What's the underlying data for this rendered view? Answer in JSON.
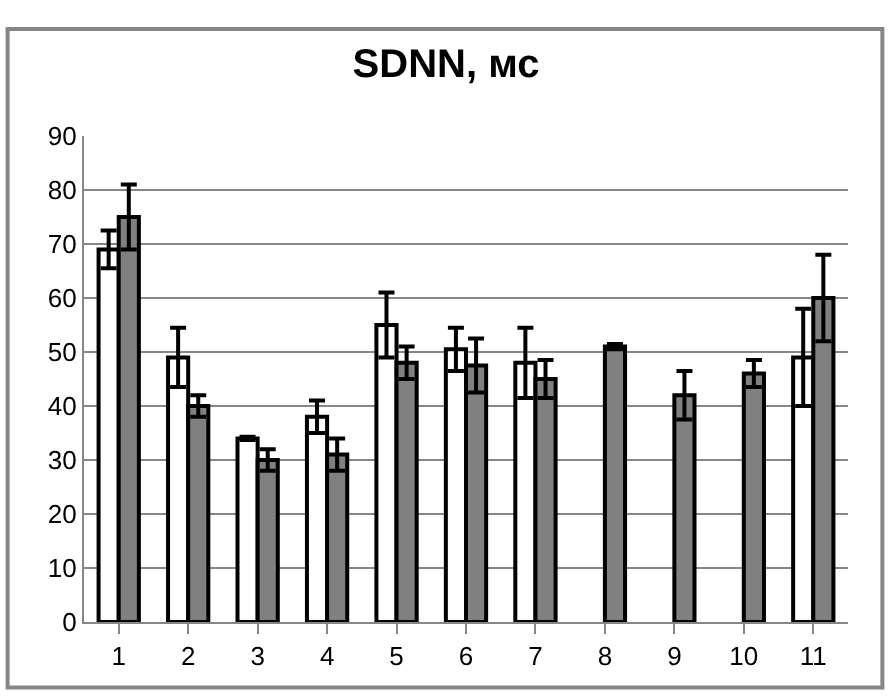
{
  "chart_data": {
    "type": "bar",
    "title": "SDNN, мс",
    "categories": [
      "1",
      "2",
      "3",
      "4",
      "5",
      "6",
      "7",
      "8",
      "9",
      "10",
      "11"
    ],
    "series": [
      {
        "color": "#ffffff",
        "values": [
          69,
          49,
          34,
          38,
          55,
          50.5,
          48,
          null,
          null,
          null,
          49
        ],
        "errors": [
          3.5,
          5.5,
          0.3,
          3,
          6,
          4,
          6.5,
          null,
          null,
          null,
          9
        ]
      },
      {
        "color": "#808080",
        "values": [
          75,
          40,
          30,
          31,
          48,
          47.5,
          45,
          51,
          42,
          46,
          60
        ],
        "errors": [
          6,
          2,
          2,
          3,
          3,
          5,
          3.5,
          0.5,
          4.5,
          2.5,
          8
        ]
      }
    ],
    "ylim": [
      0,
      90
    ],
    "yticks": [
      0,
      10,
      20,
      30,
      40,
      50,
      60,
      70,
      80,
      90
    ],
    "grid": "y"
  }
}
